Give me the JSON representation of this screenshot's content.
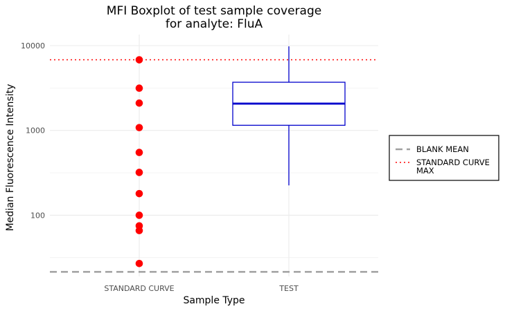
{
  "chart_data": {
    "type": "box",
    "title_lines": [
      "MFI Boxplot of test sample coverage",
      "for analyte: FluA"
    ],
    "xlabel": "Sample Type",
    "ylabel": "Median Fluorescence Intensity",
    "categories": [
      "STANDARD CURVE",
      "TEST"
    ],
    "y_scale": "log10",
    "ylim": [
      19,
      13500
    ],
    "y_ticks": [
      100,
      1000,
      10000
    ],
    "y_tick_labels": [
      "100",
      "1000",
      "10000"
    ],
    "grid": true,
    "standard_curve_points": [
      6800,
      3150,
      2100,
      1080,
      550,
      320,
      180,
      100,
      75,
      66,
      27
    ],
    "test_box": {
      "whisker_low": 225,
      "q1": 1150,
      "median": 2070,
      "q3": 3700,
      "whisker_high": 9800
    },
    "reference_lines": [
      {
        "name": "BLANK MEAN",
        "value": 21.5,
        "style": "dashed",
        "color": "#a0a0a0"
      },
      {
        "name": "STANDARD CURVE MAX",
        "value": 6800,
        "style": "dotted",
        "color": "#ff0000"
      }
    ],
    "legend": {
      "position": "right",
      "entries": [
        {
          "label_lines": [
            "BLANK MEAN"
          ],
          "style": "dashed",
          "color": "#a0a0a0"
        },
        {
          "label_lines": [
            "STANDARD CURVE",
            "MAX"
          ],
          "style": "dotted",
          "color": "#ff0000"
        }
      ]
    },
    "colors": {
      "points": "#ff0000",
      "box": "#0000cc",
      "grid": "#ebebeb"
    }
  }
}
